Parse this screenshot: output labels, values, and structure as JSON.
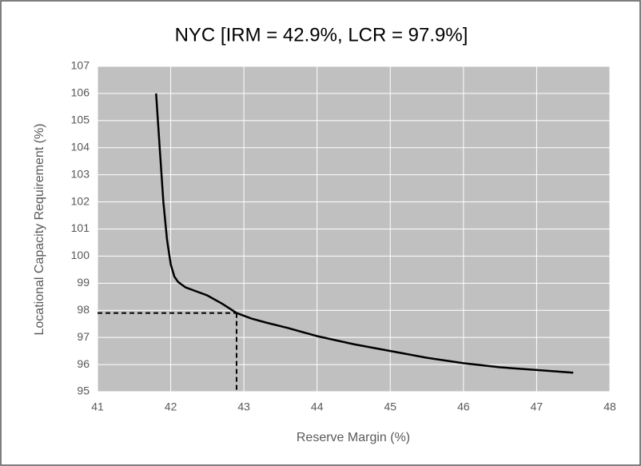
{
  "chart_data": {
    "type": "line",
    "title": "NYC [IRM = 42.9%, LCR = 97.9%]",
    "x_label": "Reserve Margin (%)",
    "y_label": "Locational Capacity Requirement (%)",
    "x": [
      41.8,
      41.85,
      41.9,
      41.95,
      42.0,
      42.05,
      42.1,
      42.2,
      42.35,
      42.5,
      42.7,
      42.9,
      43.1,
      43.3,
      43.6,
      44.0,
      44.5,
      45.0,
      45.5,
      46.0,
      46.5,
      47.0,
      47.5
    ],
    "values": [
      106,
      104,
      102,
      100.6,
      99.7,
      99.25,
      99.05,
      98.85,
      98.7,
      98.55,
      98.25,
      97.9,
      97.7,
      97.55,
      97.35,
      97.05,
      96.75,
      96.5,
      96.25,
      96.05,
      95.9,
      95.8,
      95.7
    ],
    "color": "#000000",
    "markers": {
      "x": 42.9,
      "y": 97.9
    },
    "xlim": [
      41,
      48
    ],
    "xticks": [
      41,
      42,
      43,
      44,
      45,
      46,
      47,
      48
    ],
    "ylim": [
      95,
      107
    ],
    "yticks": [
      95,
      96,
      97,
      98,
      99,
      100,
      101,
      102,
      103,
      104,
      105,
      106,
      107
    ],
    "grid": true
  }
}
